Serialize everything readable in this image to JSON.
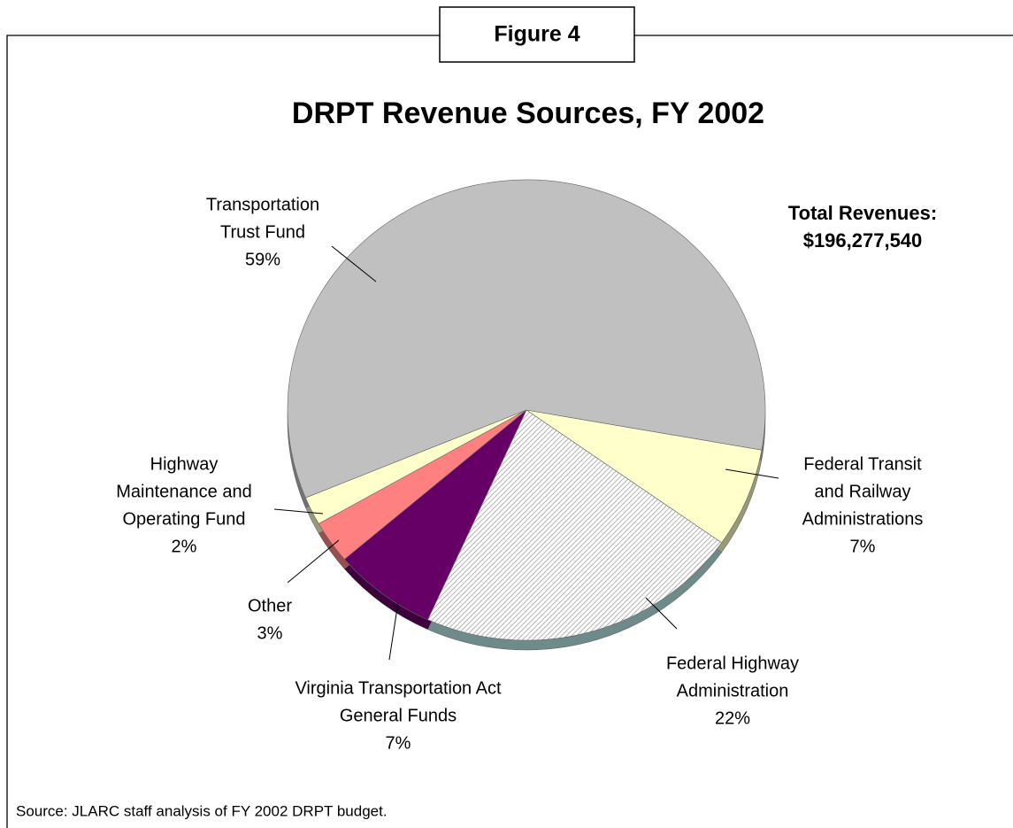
{
  "figure_label": "Figure 4",
  "source": "Source:  JLARC staff analysis of FY 2002 DRPT budget.",
  "chart_data": {
    "type": "pie",
    "title": "DRPT Revenue Sources, FY 2002",
    "annotation": [
      "Total Revenues:",
      "$196,277,540"
    ],
    "categories": [
      [
        "Federal Transit",
        "and Railway",
        "Administrations"
      ],
      [
        "Federal Highway",
        "Administration"
      ],
      [
        "Virginia Transportation Act",
        "General Funds"
      ],
      [
        "Other"
      ],
      [
        "Highway",
        "Maintenance and",
        "Operating Fund"
      ],
      [
        "Transportation",
        "Trust Fund"
      ]
    ],
    "values": [
      7,
      22,
      7,
      3,
      2,
      59
    ],
    "value_labels": [
      "7%",
      "22%",
      "7%",
      "3%",
      "2%",
      "59%"
    ],
    "colors": [
      "#ffffcc",
      "#d4d4d4",
      "#660066",
      "#ff8080",
      "#ffffcc",
      "#c0c0c0"
    ]
  }
}
